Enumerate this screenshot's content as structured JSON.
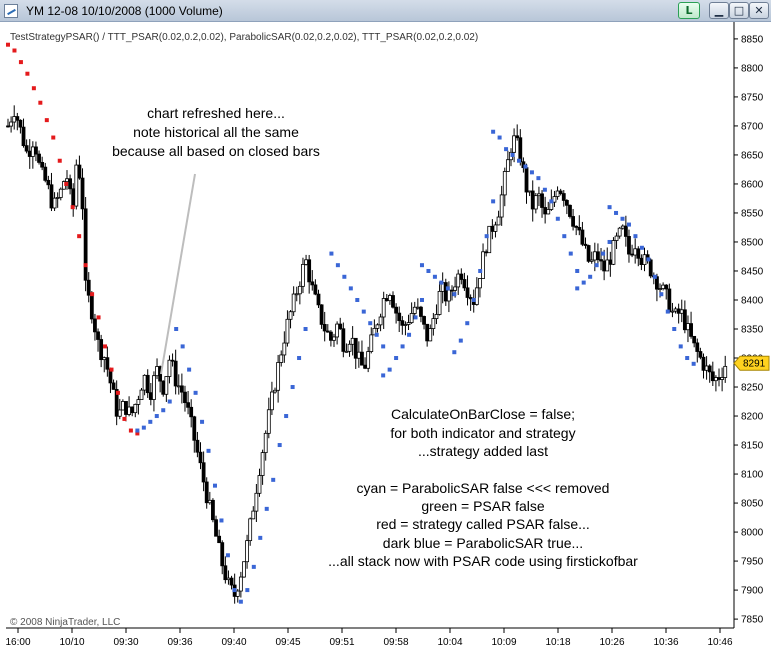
{
  "window": {
    "title": "YM 12-08  10/10/2008 (1000 Volume)",
    "app_icon": "chart-icon",
    "buttons": {
      "l_label": "L",
      "minimize": "▁",
      "maximize": "□",
      "close": "✕"
    }
  },
  "chart": {
    "indicator_label": "TestStrategyPSAR() / TTT_PSAR(0.02,0.2,0.02), ParabolicSAR(0.02,0.2,0.02), TTT_PSAR(0.02,0.2,0.02)",
    "copyright": "© 2008 NinjaTrader, LLC",
    "last_price": "8291",
    "annotations": {
      "refresh": [
        "chart refreshed here...",
        "note historical all the same",
        "because all based on closed bars"
      ],
      "calc": [
        "CalculateOnBarClose = false;",
        "for both indicator and strategy",
        "...strategy added last"
      ],
      "legend": [
        "cyan = ParabolicSAR false <<< removed",
        "green = PSAR false",
        "red = strategy called PSAR false...",
        "dark blue = ParabolicSAR true...",
        "...all stack now with PSAR code using firstickofbar"
      ]
    },
    "colors": {
      "candle": "#000000",
      "psar_red": "#e41a1c",
      "psar_blue": "#3a66d6",
      "pointer_line": "#bdbdbd",
      "price_badge": "#ffd21f"
    }
  },
  "chart_data": {
    "type": "candlestick",
    "title": "YM 12-08  10/10/2008 (1000 Volume)",
    "y_ticks": [
      8850,
      8800,
      8750,
      8700,
      8650,
      8600,
      8550,
      8500,
      8450,
      8400,
      8350,
      8300,
      8250,
      8200,
      8150,
      8100,
      8050,
      8000,
      7950,
      7900,
      7850
    ],
    "ylim": [
      7845,
      8855
    ],
    "x_labels": [
      "16:00",
      "10/10",
      "09:30",
      "09:36",
      "09:40",
      "09:45",
      "09:51",
      "09:58",
      "10:04",
      "10:09",
      "10:18",
      "10:26",
      "10:36",
      "10:46"
    ],
    "last_price": 8291,
    "close_path": [
      [
        0,
        8700
      ],
      [
        0.5,
        8730
      ],
      [
        1,
        8690
      ],
      [
        1.5,
        8650
      ],
      [
        2,
        8680
      ],
      [
        2.5,
        8620
      ],
      [
        3,
        8600
      ],
      [
        3.5,
        8560
      ],
      [
        4,
        8580
      ],
      [
        4.5,
        8620
      ],
      [
        5,
        8550
      ],
      [
        5.3,
        8640
      ],
      [
        5.7,
        8600
      ],
      [
        6,
        8420
      ],
      [
        6.5,
        8380
      ],
      [
        7,
        8320
      ],
      [
        7.5,
        8300
      ],
      [
        8,
        8250
      ],
      [
        8.5,
        8200
      ],
      [
        9,
        8220
      ],
      [
        9.5,
        8200
      ],
      [
        10,
        8230
      ],
      [
        10.5,
        8270
      ],
      [
        11,
        8240
      ],
      [
        11.5,
        8280
      ],
      [
        12,
        8250
      ],
      [
        12.5,
        8300
      ],
      [
        13,
        8260
      ],
      [
        13.5,
        8240
      ],
      [
        14,
        8200
      ],
      [
        14.5,
        8150
      ],
      [
        15,
        8100
      ],
      [
        15.5,
        8050
      ],
      [
        16,
        8000
      ],
      [
        16.5,
        7950
      ],
      [
        17,
        7910
      ],
      [
        17.5,
        7890
      ],
      [
        18,
        7930
      ],
      [
        18.5,
        7980
      ],
      [
        19,
        8050
      ],
      [
        19.5,
        8120
      ],
      [
        20,
        8180
      ],
      [
        20.5,
        8240
      ],
      [
        21,
        8300
      ],
      [
        21.5,
        8350
      ],
      [
        22,
        8390
      ],
      [
        22.5,
        8430
      ],
      [
        23,
        8470
      ],
      [
        23.5,
        8420
      ],
      [
        24,
        8380
      ],
      [
        24.5,
        8350
      ],
      [
        25,
        8330
      ],
      [
        25.5,
        8360
      ],
      [
        26,
        8320
      ],
      [
        26.5,
        8340
      ],
      [
        27,
        8300
      ],
      [
        27.5,
        8280
      ],
      [
        28,
        8320
      ],
      [
        28.5,
        8360
      ],
      [
        29,
        8400
      ],
      [
        29.5,
        8420
      ],
      [
        30,
        8380
      ],
      [
        30.5,
        8350
      ],
      [
        31,
        8370
      ],
      [
        31.5,
        8390
      ],
      [
        32,
        8360
      ],
      [
        32.5,
        8330
      ],
      [
        33,
        8380
      ],
      [
        33.5,
        8420
      ],
      [
        34,
        8400
      ],
      [
        34.5,
        8430
      ],
      [
        35,
        8450
      ],
      [
        35.5,
        8420
      ],
      [
        36,
        8400
      ],
      [
        36.5,
        8450
      ],
      [
        37,
        8500
      ],
      [
        37.5,
        8530
      ],
      [
        38,
        8560
      ],
      [
        38.5,
        8620
      ],
      [
        39,
        8680
      ],
      [
        39.5,
        8660
      ],
      [
        40,
        8600
      ],
      [
        40.5,
        8560
      ],
      [
        41,
        8580
      ],
      [
        41.5,
        8540
      ],
      [
        42,
        8560
      ],
      [
        42.5,
        8600
      ],
      [
        43,
        8580
      ],
      [
        43.5,
        8550
      ],
      [
        44,
        8520
      ],
      [
        44.5,
        8490
      ],
      [
        45,
        8460
      ],
      [
        45.5,
        8480
      ],
      [
        46,
        8450
      ],
      [
        46.5,
        8470
      ],
      [
        47,
        8500
      ],
      [
        47.5,
        8520
      ],
      [
        48,
        8480
      ],
      [
        48.5,
        8500
      ],
      [
        49,
        8470
      ],
      [
        49.5,
        8460
      ],
      [
        50,
        8440
      ],
      [
        50.5,
        8420
      ],
      [
        51,
        8400
      ],
      [
        51.5,
        8370
      ],
      [
        52,
        8380
      ],
      [
        52.5,
        8350
      ],
      [
        53,
        8320
      ],
      [
        53.5,
        8300
      ],
      [
        54,
        8280
      ],
      [
        54.5,
        8260
      ],
      [
        55,
        8270
      ],
      [
        55.5,
        8291
      ]
    ],
    "psar_red": [
      [
        0,
        8840
      ],
      [
        0.5,
        8830
      ],
      [
        1,
        8810
      ],
      [
        1.5,
        8790
      ],
      [
        2,
        8765
      ],
      [
        2.5,
        8740
      ],
      [
        3,
        8710
      ],
      [
        3.5,
        8680
      ],
      [
        4,
        8640
      ],
      [
        4.5,
        8600
      ],
      [
        5,
        8560
      ],
      [
        5.5,
        8510
      ],
      [
        6,
        8460
      ],
      [
        6.5,
        8410
      ],
      [
        7,
        8370
      ],
      [
        7.5,
        8320
      ],
      [
        8,
        8280
      ],
      [
        8.5,
        8240
      ],
      [
        9,
        8195
      ],
      [
        9.5,
        8175
      ],
      [
        10,
        8170
      ]
    ],
    "psar_blue": [
      [
        10,
        8175
      ],
      [
        10.5,
        8180
      ],
      [
        11,
        8190
      ],
      [
        11.5,
        8200
      ],
      [
        12,
        8210
      ],
      [
        12.5,
        8225
      ],
      [
        13,
        8350
      ],
      [
        13.5,
        8320
      ],
      [
        14,
        8280
      ],
      [
        14.5,
        8240
      ],
      [
        15,
        8190
      ],
      [
        15.5,
        8140
      ],
      [
        16,
        8080
      ],
      [
        16.5,
        8020
      ],
      [
        17,
        7960
      ],
      [
        17.5,
        7900
      ],
      [
        18,
        7880
      ],
      [
        18.5,
        7900
      ],
      [
        19,
        7940
      ],
      [
        19.5,
        7990
      ],
      [
        20,
        8040
      ],
      [
        20.5,
        8090
      ],
      [
        21,
        8150
      ],
      [
        21.5,
        8200
      ],
      [
        22,
        8250
      ],
      [
        22.5,
        8300
      ],
      [
        23,
        8350
      ],
      [
        25,
        8480
      ],
      [
        25.5,
        8460
      ],
      [
        26,
        8440
      ],
      [
        26.5,
        8420
      ],
      [
        27,
        8400
      ],
      [
        27.5,
        8380
      ],
      [
        28,
        8360
      ],
      [
        28.5,
        8340
      ],
      [
        29,
        8320
      ],
      [
        29,
        8270
      ],
      [
        29.5,
        8280
      ],
      [
        30,
        8300
      ],
      [
        30.5,
        8320
      ],
      [
        31,
        8340
      ],
      [
        31.5,
        8370
      ],
      [
        32,
        8400
      ],
      [
        32,
        8460
      ],
      [
        32.5,
        8450
      ],
      [
        33,
        8440
      ],
      [
        33.5,
        8430
      ],
      [
        34,
        8420
      ],
      [
        34.5,
        8410
      ],
      [
        34.5,
        8310
      ],
      [
        35,
        8330
      ],
      [
        35.5,
        8360
      ],
      [
        36,
        8400
      ],
      [
        36.5,
        8450
      ],
      [
        37,
        8510
      ],
      [
        37.5,
        8570
      ],
      [
        37.5,
        8690
      ],
      [
        38,
        8680
      ],
      [
        38.5,
        8660
      ],
      [
        39,
        8650
      ],
      [
        39.5,
        8640
      ],
      [
        40,
        8630
      ],
      [
        40.5,
        8620
      ],
      [
        41,
        8610
      ],
      [
        41.5,
        8590
      ],
      [
        42,
        8570
      ],
      [
        42.5,
        8540
      ],
      [
        43,
        8510
      ],
      [
        43.5,
        8480
      ],
      [
        44,
        8450
      ],
      [
        44,
        8420
      ],
      [
        44.5,
        8430
      ],
      [
        45,
        8440
      ],
      [
        45.5,
        8460
      ],
      [
        46,
        8480
      ],
      [
        46.5,
        8500
      ],
      [
        46.5,
        8560
      ],
      [
        47,
        8550
      ],
      [
        47.5,
        8540
      ],
      [
        48,
        8530
      ],
      [
        48.5,
        8510
      ],
      [
        49,
        8490
      ],
      [
        49.5,
        8470
      ],
      [
        50,
        8440
      ],
      [
        50.5,
        8410
      ],
      [
        51,
        8380
      ],
      [
        51.5,
        8350
      ],
      [
        52,
        8320
      ],
      [
        52.5,
        8300
      ],
      [
        53,
        8290
      ]
    ]
  }
}
